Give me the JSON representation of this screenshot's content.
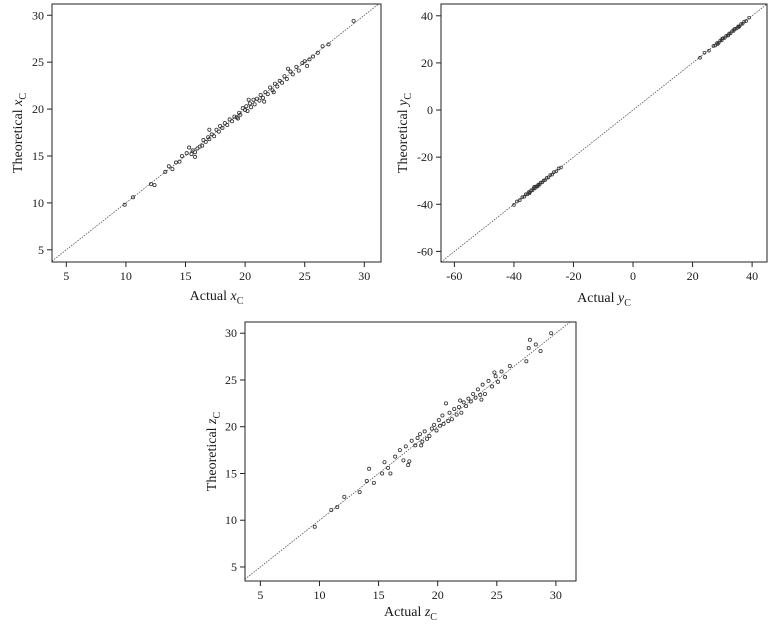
{
  "chart_data": [
    {
      "id": "xc",
      "type": "scatter",
      "xlabel": {
        "text": "Actual ",
        "var": "x",
        "sub": "C"
      },
      "ylabel": {
        "text": "Theoretical ",
        "var": "x",
        "sub": "C"
      },
      "xlim": [
        3.8,
        31.4
      ],
      "ylim": [
        3.7,
        31.2
      ],
      "xticks": [
        5,
        10,
        15,
        20,
        25,
        30
      ],
      "yticks": [
        5,
        10,
        15,
        20,
        25,
        30
      ],
      "reference_line": "y = x",
      "grid": false,
      "points": [
        [
          9.9,
          9.8
        ],
        [
          10.6,
          10.6
        ],
        [
          12.1,
          12.0
        ],
        [
          12.4,
          11.9
        ],
        [
          13.3,
          13.3
        ],
        [
          13.6,
          13.9
        ],
        [
          13.9,
          13.6
        ],
        [
          14.2,
          14.3
        ],
        [
          14.5,
          14.4
        ],
        [
          14.7,
          15.0
        ],
        [
          15.1,
          15.3
        ],
        [
          15.3,
          15.9
        ],
        [
          15.5,
          15.2
        ],
        [
          15.6,
          15.6
        ],
        [
          15.8,
          15.4
        ],
        [
          16.0,
          15.8
        ],
        [
          16.2,
          16.0
        ],
        [
          16.4,
          16.1
        ],
        [
          16.5,
          16.7
        ],
        [
          16.7,
          16.5
        ],
        [
          16.9,
          17.0
        ],
        [
          17.0,
          16.8
        ],
        [
          17.2,
          17.3
        ],
        [
          17.4,
          17.1
        ],
        [
          17.6,
          17.8
        ],
        [
          17.8,
          17.6
        ],
        [
          17.9,
          18.2
        ],
        [
          18.1,
          18.0
        ],
        [
          18.3,
          18.5
        ],
        [
          18.5,
          18.3
        ],
        [
          18.7,
          18.9
        ],
        [
          18.9,
          18.7
        ],
        [
          19.1,
          19.2
        ],
        [
          19.3,
          19.1
        ],
        [
          19.5,
          19.6
        ],
        [
          19.6,
          19.4
        ],
        [
          19.8,
          20.1
        ],
        [
          20.0,
          19.9
        ],
        [
          20.1,
          20.3
        ],
        [
          20.2,
          19.8
        ],
        [
          20.4,
          20.6
        ],
        [
          20.5,
          20.2
        ],
        [
          20.7,
          21.0
        ],
        [
          20.8,
          20.5
        ],
        [
          21.0,
          21.1
        ],
        [
          21.2,
          20.9
        ],
        [
          21.3,
          21.5
        ],
        [
          21.5,
          21.2
        ],
        [
          21.7,
          21.8
        ],
        [
          21.9,
          21.6
        ],
        [
          22.1,
          22.3
        ],
        [
          22.3,
          22.0
        ],
        [
          22.5,
          22.7
        ],
        [
          22.7,
          22.4
        ],
        [
          22.9,
          23.0
        ],
        [
          23.1,
          22.8
        ],
        [
          23.3,
          23.5
        ],
        [
          23.5,
          23.2
        ],
        [
          23.8,
          24.0
        ],
        [
          24.0,
          23.7
        ],
        [
          24.3,
          24.5
        ],
        [
          24.5,
          24.1
        ],
        [
          24.8,
          24.9
        ],
        [
          25.0,
          25.1
        ],
        [
          25.4,
          25.3
        ],
        [
          25.7,
          25.6
        ],
        [
          26.1,
          26.0
        ],
        [
          26.5,
          26.7
        ],
        [
          27.0,
          26.9
        ],
        [
          29.1,
          29.4
        ],
        [
          15.8,
          14.9
        ],
        [
          17.0,
          17.8
        ],
        [
          19.4,
          19.0
        ],
        [
          20.3,
          21.0
        ],
        [
          21.6,
          20.8
        ],
        [
          22.4,
          21.8
        ],
        [
          23.6,
          24.3
        ],
        [
          25.2,
          24.6
        ]
      ]
    },
    {
      "id": "yc",
      "type": "scatter",
      "xlabel": {
        "text": "Actual ",
        "var": "y",
        "sub": "C"
      },
      "ylabel": {
        "text": "Theoretical ",
        "var": "y",
        "sub": "C"
      },
      "xlim": [
        -64.5,
        45.0
      ],
      "ylim": [
        -64.5,
        45.0
      ],
      "xticks": [
        -60,
        -40,
        -20,
        0,
        20,
        40
      ],
      "yticks": [
        -60,
        -40,
        -20,
        0,
        20,
        40
      ],
      "reference_line": "y = x",
      "grid": false,
      "points": [
        [
          -40.0,
          -40.3
        ],
        [
          -39.0,
          -38.8
        ],
        [
          -38.0,
          -38.2
        ],
        [
          -37.2,
          -37.0
        ],
        [
          -36.5,
          -36.8
        ],
        [
          -36.0,
          -35.7
        ],
        [
          -35.5,
          -35.8
        ],
        [
          -35.0,
          -34.8
        ],
        [
          -34.6,
          -34.9
        ],
        [
          -34.2,
          -34.0
        ],
        [
          -33.8,
          -34.1
        ],
        [
          -33.4,
          -33.2
        ],
        [
          -33.0,
          -33.3
        ],
        [
          -32.6,
          -32.4
        ],
        [
          -32.2,
          -32.5
        ],
        [
          -31.8,
          -31.6
        ],
        [
          -31.4,
          -31.7
        ],
        [
          -31.0,
          -30.8
        ],
        [
          -30.5,
          -30.7
        ],
        [
          -30.0,
          -29.9
        ],
        [
          -29.5,
          -29.7
        ],
        [
          -29.0,
          -28.8
        ],
        [
          -28.4,
          -28.6
        ],
        [
          -27.8,
          -27.6
        ],
        [
          -27.2,
          -27.4
        ],
        [
          -26.6,
          -26.4
        ],
        [
          -25.8,
          -26.0
        ],
        [
          -25.0,
          -24.8
        ],
        [
          -24.2,
          -24.4
        ],
        [
          -34.8,
          -35.3
        ],
        [
          -33.2,
          -32.6
        ],
        [
          -32.0,
          -32.2
        ],
        [
          22.5,
          22.2
        ],
        [
          24.0,
          24.3
        ],
        [
          25.5,
          25.2
        ],
        [
          27.0,
          27.2
        ],
        [
          27.6,
          27.4
        ],
        [
          28.2,
          28.4
        ],
        [
          28.8,
          28.6
        ],
        [
          29.3,
          29.5
        ],
        [
          29.8,
          29.6
        ],
        [
          30.3,
          30.5
        ],
        [
          30.8,
          30.6
        ],
        [
          31.3,
          31.5
        ],
        [
          31.8,
          31.6
        ],
        [
          32.3,
          32.5
        ],
        [
          32.8,
          32.6
        ],
        [
          33.3,
          33.5
        ],
        [
          33.8,
          33.6
        ],
        [
          34.3,
          34.5
        ],
        [
          34.8,
          34.6
        ],
        [
          35.3,
          35.5
        ],
        [
          35.8,
          35.6
        ],
        [
          36.3,
          36.5
        ],
        [
          36.8,
          36.6
        ],
        [
          37.3,
          37.5
        ],
        [
          38.0,
          37.8
        ],
        [
          39.0,
          39.2
        ],
        [
          28.5,
          28.0
        ],
        [
          30.0,
          30.4
        ],
        [
          32.0,
          31.7
        ],
        [
          34.0,
          34.3
        ],
        [
          35.5,
          35.2
        ]
      ]
    },
    {
      "id": "zc",
      "type": "scatter",
      "xlabel": {
        "text": "Actual ",
        "var": "z",
        "sub": "C"
      },
      "ylabel": {
        "text": "Theoretical ",
        "var": "z",
        "sub": "C"
      },
      "xlim": [
        3.7,
        31.7
      ],
      "ylim": [
        3.5,
        31.2
      ],
      "xticks": [
        5,
        10,
        15,
        20,
        25,
        30
      ],
      "yticks": [
        5,
        10,
        15,
        20,
        25,
        30
      ],
      "reference_line": "y = x",
      "grid": false,
      "points": [
        [
          9.6,
          9.3
        ],
        [
          11.0,
          11.1
        ],
        [
          11.5,
          11.4
        ],
        [
          12.1,
          12.5
        ],
        [
          13.4,
          13.0
        ],
        [
          14.0,
          14.2
        ],
        [
          14.2,
          15.5
        ],
        [
          14.6,
          14.0
        ],
        [
          15.3,
          15.0
        ],
        [
          15.5,
          16.2
        ],
        [
          15.8,
          15.6
        ],
        [
          16.0,
          15.0
        ],
        [
          16.4,
          16.8
        ],
        [
          16.8,
          17.5
        ],
        [
          17.1,
          16.4
        ],
        [
          17.3,
          17.9
        ],
        [
          17.5,
          15.9
        ],
        [
          17.6,
          16.3
        ],
        [
          17.8,
          18.5
        ],
        [
          18.1,
          18.0
        ],
        [
          18.3,
          18.8
        ],
        [
          18.5,
          19.2
        ],
        [
          18.7,
          18.4
        ],
        [
          18.9,
          19.5
        ],
        [
          19.1,
          18.7
        ],
        [
          19.3,
          19.0
        ],
        [
          19.5,
          19.8
        ],
        [
          19.7,
          20.2
        ],
        [
          19.9,
          19.6
        ],
        [
          20.1,
          20.7
        ],
        [
          20.2,
          20.1
        ],
        [
          20.4,
          21.2
        ],
        [
          20.5,
          20.3
        ],
        [
          20.7,
          22.5
        ],
        [
          20.9,
          20.6
        ],
        [
          21.0,
          21.5
        ],
        [
          21.2,
          20.8
        ],
        [
          21.4,
          21.9
        ],
        [
          21.6,
          21.3
        ],
        [
          21.8,
          22.1
        ],
        [
          22.0,
          21.5
        ],
        [
          22.2,
          22.6
        ],
        [
          22.4,
          22.2
        ],
        [
          22.6,
          23.0
        ],
        [
          22.8,
          22.7
        ],
        [
          23.0,
          23.5
        ],
        [
          23.2,
          23.1
        ],
        [
          23.4,
          24.0
        ],
        [
          23.6,
          23.4
        ],
        [
          23.8,
          24.5
        ],
        [
          24.0,
          23.5
        ],
        [
          24.3,
          24.9
        ],
        [
          24.6,
          24.3
        ],
        [
          24.9,
          25.4
        ],
        [
          25.1,
          24.8
        ],
        [
          25.4,
          25.9
        ],
        [
          25.7,
          25.3
        ],
        [
          26.1,
          26.5
        ],
        [
          27.5,
          27.0
        ],
        [
          27.7,
          28.4
        ],
        [
          27.8,
          29.3
        ],
        [
          28.3,
          28.8
        ],
        [
          28.7,
          28.1
        ],
        [
          29.6,
          30.0
        ],
        [
          18.6,
          18.0
        ],
        [
          21.9,
          22.8
        ],
        [
          23.7,
          22.9
        ],
        [
          24.8,
          25.8
        ]
      ]
    }
  ]
}
